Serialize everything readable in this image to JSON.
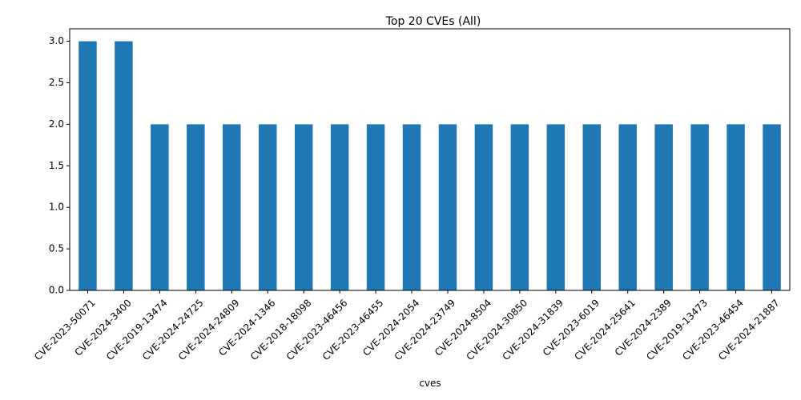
{
  "chart_data": {
    "type": "bar",
    "title": "Top 20 CVEs (All)",
    "xlabel": "cves",
    "ylabel": "",
    "categories": [
      "CVE-2023-50071",
      "CVE-2024-3400",
      "CVE-2019-13474",
      "CVE-2024-24725",
      "CVE-2024-24809",
      "CVE-2024-1346",
      "CVE-2018-18098",
      "CVE-2023-46456",
      "CVE-2023-46455",
      "CVE-2024-2054",
      "CVE-2024-23749",
      "CVE-2024-8504",
      "CVE-2024-30850",
      "CVE-2024-31839",
      "CVE-2023-6019",
      "CVE-2024-25641",
      "CVE-2024-2389",
      "CVE-2019-13473",
      "CVE-2023-46454",
      "CVE-2024-21887"
    ],
    "values": [
      3,
      3,
      2,
      2,
      2,
      2,
      2,
      2,
      2,
      2,
      2,
      2,
      2,
      2,
      2,
      2,
      2,
      2,
      2,
      2
    ],
    "ylim": [
      0,
      3.15
    ],
    "yticks": [
      "0.0",
      "0.5",
      "1.0",
      "1.5",
      "2.0",
      "2.5",
      "3.0"
    ],
    "grid": false,
    "bar_color": "#1f77b4"
  }
}
